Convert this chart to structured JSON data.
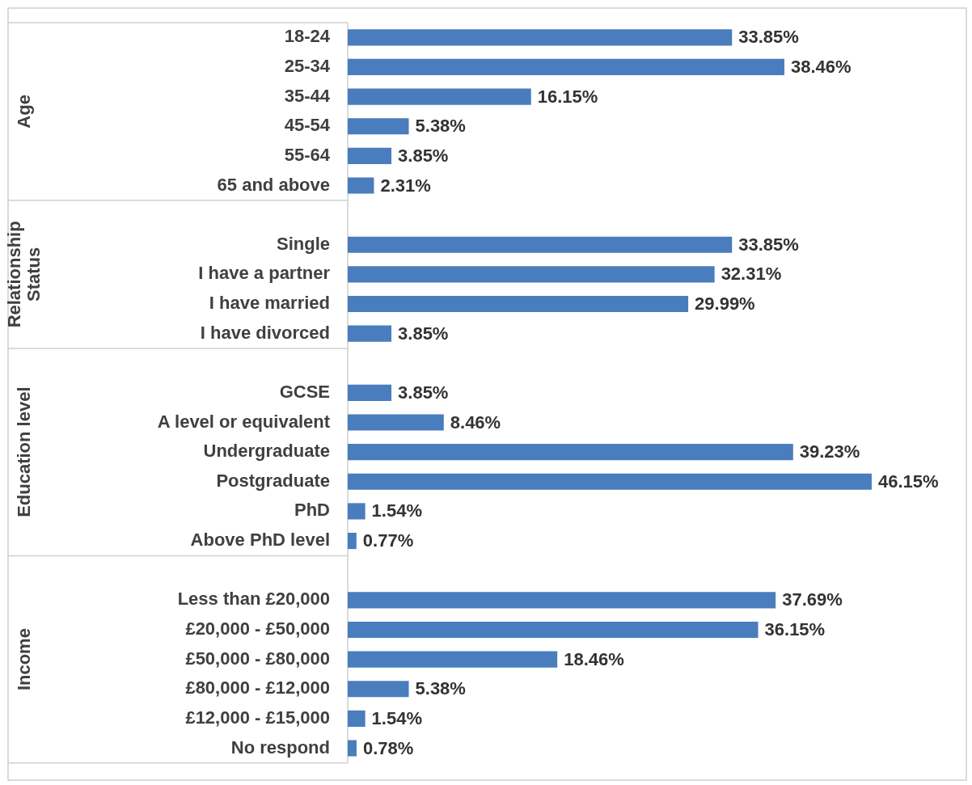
{
  "chart_data": {
    "type": "bar",
    "orientation": "horizontal",
    "categories": [
      "18-24",
      "25-34",
      "35-44",
      "45-54",
      "55-64",
      "65 and above",
      null,
      "Single",
      "I have a partner",
      "I have married",
      "I have divorced",
      null,
      "GCSE",
      "A level or equivalent",
      "Undergraduate",
      "Postgraduate",
      "PhD",
      "Above PhD level",
      null,
      "Less than £20,000",
      "£20,000 - £50,000",
      "£50,000 - £80,000",
      "£80,000 - £12,000",
      "£12,000 - £15,000",
      "No respond"
    ],
    "values": [
      33.85,
      38.46,
      16.15,
      5.38,
      3.85,
      2.31,
      null,
      33.85,
      32.31,
      29.99,
      3.85,
      null,
      3.85,
      8.46,
      39.23,
      46.15,
      1.54,
      0.77,
      null,
      37.69,
      36.15,
      18.46,
      5.38,
      1.54,
      0.78
    ],
    "value_labels": [
      "33.85%",
      "38.46%",
      "16.15%",
      "5.38%",
      "3.85%",
      "2.31%",
      null,
      "33.85%",
      "32.31%",
      "29.99%",
      "3.85%",
      null,
      "3.85%",
      "8.46%",
      "39.23%",
      "46.15%",
      "1.54%",
      "0.77%",
      null,
      "37.69%",
      "36.15%",
      "18.46%",
      "5.38%",
      "1.54%",
      "0.78%"
    ],
    "color": "#4a7dbd",
    "annotations": [
      "Age",
      "Relationship Status",
      "Education level",
      "Income"
    ],
    "tick_labels": "y",
    "legend": false
  }
}
